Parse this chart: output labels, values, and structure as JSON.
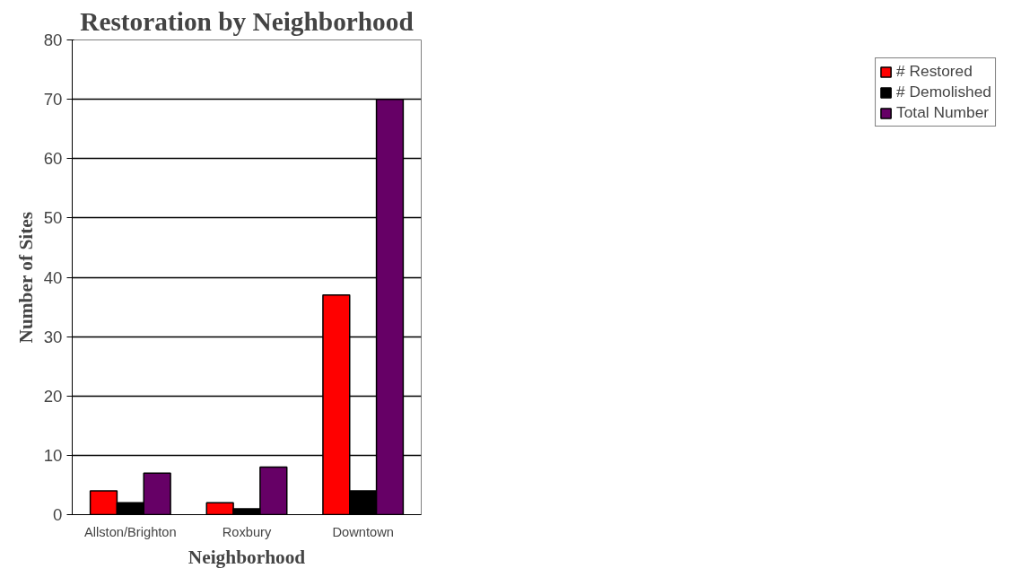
{
  "chart_data": {
    "type": "bar",
    "title": "Restoration by Neighborhood",
    "xlabel": "Neighborhood",
    "ylabel": "Number of Sites",
    "categories": [
      "Allston/Brighton",
      "Roxbury",
      "Downtown"
    ],
    "series": [
      {
        "name": "# Restored",
        "color": "#ff0000",
        "values": [
          4,
          2,
          37
        ]
      },
      {
        "name": "# Demolished",
        "color": "#000000",
        "values": [
          2,
          1,
          4
        ]
      },
      {
        "name": "Total Number",
        "color": "#660066",
        "values": [
          7,
          8,
          70
        ]
      }
    ],
    "ylim": [
      0,
      80
    ],
    "yticks": [
      0,
      10,
      20,
      30,
      40,
      50,
      60,
      70,
      80
    ],
    "grid": "y",
    "legend": "right"
  }
}
